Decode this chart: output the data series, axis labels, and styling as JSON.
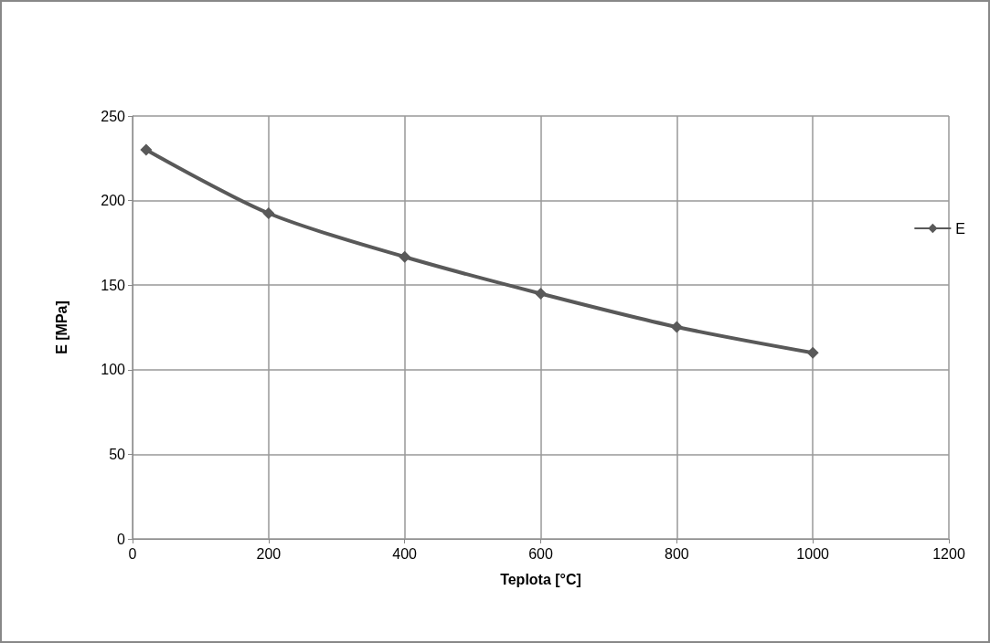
{
  "chart_data": {
    "type": "line",
    "xlabel": "Teplota [°C]",
    "ylabel": "E [MPa]",
    "x": [
      20,
      200,
      400,
      600,
      800,
      1000
    ],
    "series": [
      {
        "name": "E",
        "color": "#595959",
        "values": [
          230,
          192.5,
          166.7,
          145,
          125.3,
          110
        ]
      }
    ],
    "xlim": [
      0,
      1200
    ],
    "xticks": [
      0,
      200,
      400,
      600,
      800,
      1000,
      1200
    ],
    "ylim": [
      0,
      250
    ],
    "yticks": [
      0,
      50,
      100,
      150,
      200,
      250
    ],
    "grid": true,
    "legend": "right",
    "marker": "diamond",
    "line_style": "solid"
  }
}
